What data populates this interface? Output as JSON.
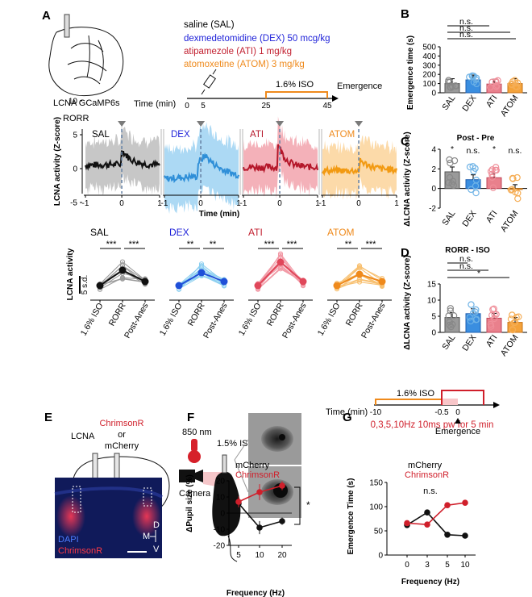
{
  "panels": {
    "A": {
      "letter": "A",
      "region_label": "LCNA GCaMP6s",
      "legend": [
        {
          "label": "saline (SAL)",
          "color": "#000000"
        },
        {
          "label": "dexmedetomidine (DEX) 50 mcg/kg",
          "color": "#1c1fd8"
        },
        {
          "label": "atipamezole (ATI) 1 mg/kg",
          "color": "#c21f2f"
        },
        {
          "label": "atomoxetine (ATOM) 3 mg/kg",
          "color": "#ef8a1c"
        }
      ],
      "timeline": {
        "time_label": "Time (min)",
        "ticks": [
          "0",
          "5",
          "25",
          "45"
        ],
        "iso_label": "1.6% ISO",
        "emergence_label": "Emergence"
      },
      "traces": {
        "rorr_label": "RORR",
        "groups": [
          "SAL",
          "DEX",
          "ATI",
          "ATOM"
        ],
        "colors": [
          "#111111",
          "#2f8fd8",
          "#b5172a",
          "#f29a12"
        ],
        "band_colors": [
          "#bdbdbd",
          "#9ed2f2",
          "#f2a3ad",
          "#fbd39a"
        ],
        "ylabel": "LCNA activity (Z-score)",
        "yticks": [
          "10",
          "5",
          "0",
          "-5"
        ],
        "xticks": [
          "-1",
          "0",
          "1"
        ],
        "xlabel": "Time (min)"
      },
      "paired": {
        "groups": [
          "SAL",
          "DEX",
          "ATI",
          "ATOM"
        ],
        "conditions": [
          "1.6% ISO",
          "RORR",
          "Post-Anes"
        ],
        "sig_left": [
          "***",
          "**",
          "***",
          "**"
        ],
        "sig_right": [
          "***",
          "**",
          "***",
          "***"
        ],
        "scale_label": "5 s.d.",
        "ylabel": "LCNA activity"
      }
    },
    "B": {
      "letter": "B",
      "ylabel": "Emergence time (s)",
      "yticks": [
        "0",
        "100",
        "200",
        "300",
        "400",
        "500"
      ],
      "sig": [
        "n.s.",
        "n.s.",
        "n.s."
      ]
    },
    "C": {
      "letter": "C",
      "title": "Post - Pre",
      "ylabel": "ΔLCNA activity (Z-score)",
      "yticks": [
        "-2",
        "0",
        "2",
        "4"
      ],
      "sig": [
        "*",
        "n.s.",
        "*",
        "n.s."
      ]
    },
    "D": {
      "letter": "D",
      "title": "RORR - ISO",
      "ylabel": "ΔLCNA activity (Z-score)",
      "yticks": [
        "0",
        "5",
        "10",
        "15"
      ],
      "sig": [
        "n.s.",
        "n.s.",
        "*"
      ]
    },
    "E": {
      "letter": "E",
      "region": "LCNA",
      "virus1": "ChrimsonR",
      "or": "or",
      "virus2": "mCherry",
      "dapi": "DAPI",
      "chrimson": "ChrimsonR",
      "axis": [
        "D",
        "M",
        "V"
      ]
    },
    "F": {
      "letter": "F",
      "wavelength": "850 nm",
      "iso": "1.5% ISO",
      "camera": "Camera",
      "legend": [
        "mCherry",
        "ChrimsonR"
      ],
      "ylabel": "ΔPupil size (%)",
      "yticks": [
        "20",
        "10",
        "0",
        "-10",
        "-20"
      ],
      "xlabel": "Frequency (Hz)",
      "xticks": [
        "5",
        "10",
        "20"
      ],
      "sig": "*"
    },
    "G": {
      "letter": "G",
      "stim_label": "0,3,5,10Hz 10ms pw for 5 min",
      "iso_label": "1.6% ISO",
      "time_label": "Time (min)",
      "time_ticks": [
        "-10",
        "-0.5",
        "0"
      ],
      "emergence_label": "Emergence",
      "legend": [
        "mCherry",
        "ChrimsonR"
      ],
      "ylabel": "Emergence Time (s)",
      "yticks": [
        "0",
        "50",
        "100",
        "150"
      ],
      "xlabel": "Frequency (Hz)",
      "xticks": [
        "0",
        "3",
        "5",
        "10"
      ],
      "sig": "n.s."
    }
  },
  "chart_data": [
    {
      "panel": "B",
      "type": "bar",
      "categories": [
        "SAL",
        "DEX",
        "ATI",
        "ATOM"
      ],
      "values": [
        100,
        140,
        95,
        100
      ],
      "ylim": [
        0,
        500
      ],
      "ylabel": "Emergence time (s)",
      "colors": [
        "#9a9a9a",
        "#3a8ee0",
        "#e9808c",
        "#f4a23a"
      ]
    },
    {
      "panel": "C",
      "type": "bar",
      "categories": [
        "SAL",
        "DEX",
        "ATI",
        "ATOM"
      ],
      "values": [
        1.7,
        0.9,
        1.1,
        -0.1
      ],
      "ylim": [
        -2,
        4
      ],
      "ylabel": "ΔLCNA activity (Z-score)",
      "colors": [
        "#9a9a9a",
        "#3a8ee0",
        "#e9808c",
        "#f4a23a"
      ]
    },
    {
      "panel": "D",
      "type": "bar",
      "categories": [
        "SAL",
        "DEX",
        "ATI",
        "ATOM"
      ],
      "values": [
        4.6,
        5.8,
        4.4,
        3.1
      ],
      "ylim": [
        0,
        15
      ],
      "ylabel": "ΔLCNA activity (Z-score)",
      "colors": [
        "#9a9a9a",
        "#3a8ee0",
        "#e9808c",
        "#f4a23a"
      ]
    },
    {
      "panel": "F",
      "type": "line",
      "x": [
        "5",
        "10",
        "20"
      ],
      "ylim": [
        -20,
        20
      ],
      "ylabel": "ΔPupil size (%)",
      "xlabel": "Frequency (Hz)",
      "series": [
        {
          "name": "mCherry",
          "color": "#111111",
          "values": [
            6,
            -9,
            -5
          ]
        },
        {
          "name": "ChrimsonR",
          "color": "#d01f2b",
          "values": [
            7,
            13,
            17
          ]
        }
      ]
    },
    {
      "panel": "G",
      "type": "line",
      "x": [
        "0",
        "3",
        "5",
        "10"
      ],
      "ylim": [
        0,
        150
      ],
      "ylabel": "Emergence Time (s)",
      "xlabel": "Frequency (Hz)",
      "series": [
        {
          "name": "mCherry",
          "color": "#111111",
          "values": [
            62,
            88,
            42,
            40
          ]
        },
        {
          "name": "ChrimsonR",
          "color": "#d01f2b",
          "values": [
            66,
            63,
            103,
            108
          ]
        }
      ]
    }
  ]
}
